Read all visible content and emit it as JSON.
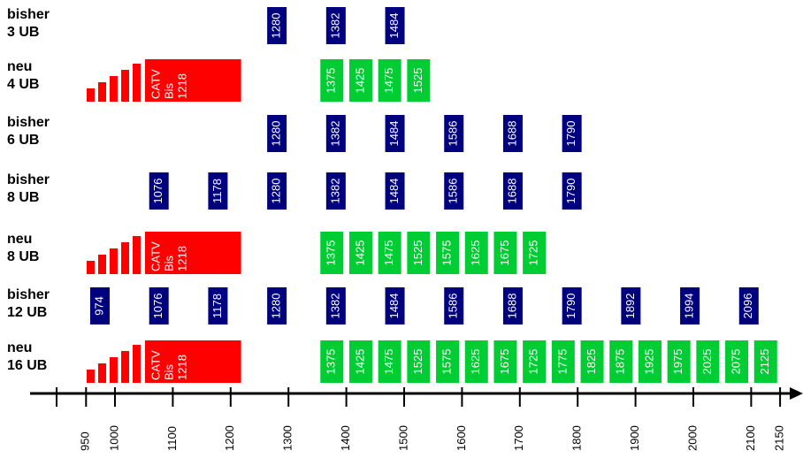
{
  "rows": [
    {
      "title": "bisher",
      "sub": "3 UB",
      "color": "#00007f",
      "channels": [
        1280,
        1382,
        1484
      ]
    },
    {
      "title": "neu",
      "sub": "4 UB",
      "color": "#00cc33",
      "catv": {
        "label": [
          "CATV",
          "Bis"
        ],
        "upper": 1218,
        "color": "#ff0000"
      },
      "channels": [
        1375,
        1425,
        1475,
        1525
      ]
    },
    {
      "title": "bisher",
      "sub": "6 UB",
      "color": "#00007f",
      "channels": [
        1280,
        1382,
        1484,
        1586,
        1688,
        1790
      ]
    },
    {
      "title": "bisher",
      "sub": "8 UB",
      "color": "#00007f",
      "channels": [
        1076,
        1178,
        1280,
        1382,
        1484,
        1586,
        1688,
        1790
      ]
    },
    {
      "title": "neu",
      "sub": "8 UB",
      "color": "#00cc33",
      "catv": {
        "label": [
          "CATV",
          "Bis"
        ],
        "upper": 1218,
        "color": "#ff0000"
      },
      "channels": [
        1375,
        1425,
        1475,
        1525,
        1575,
        1625,
        1675,
        1725
      ]
    },
    {
      "title": "bisher",
      "sub": "12 UB",
      "color": "#00007f",
      "channels": [
        974,
        1076,
        1178,
        1280,
        1382,
        1484,
        1586,
        1688,
        1790,
        1892,
        1994,
        2096
      ]
    },
    {
      "title": "neu",
      "sub": "16 UB",
      "color": "#00cc33",
      "catv": {
        "label": [
          "CATV",
          "Bis"
        ],
        "upper": 1218,
        "color": "#ff0000"
      },
      "channels": [
        1375,
        1425,
        1475,
        1525,
        1575,
        1625,
        1675,
        1725,
        1775,
        1825,
        1875,
        1925,
        1975,
        2025,
        2075,
        2125
      ]
    }
  ],
  "axis": {
    "ticks": [
      950,
      1000,
      1100,
      1200,
      1300,
      1400,
      1500,
      1600,
      1700,
      1800,
      1900,
      2000,
      2100,
      2150
    ]
  }
}
